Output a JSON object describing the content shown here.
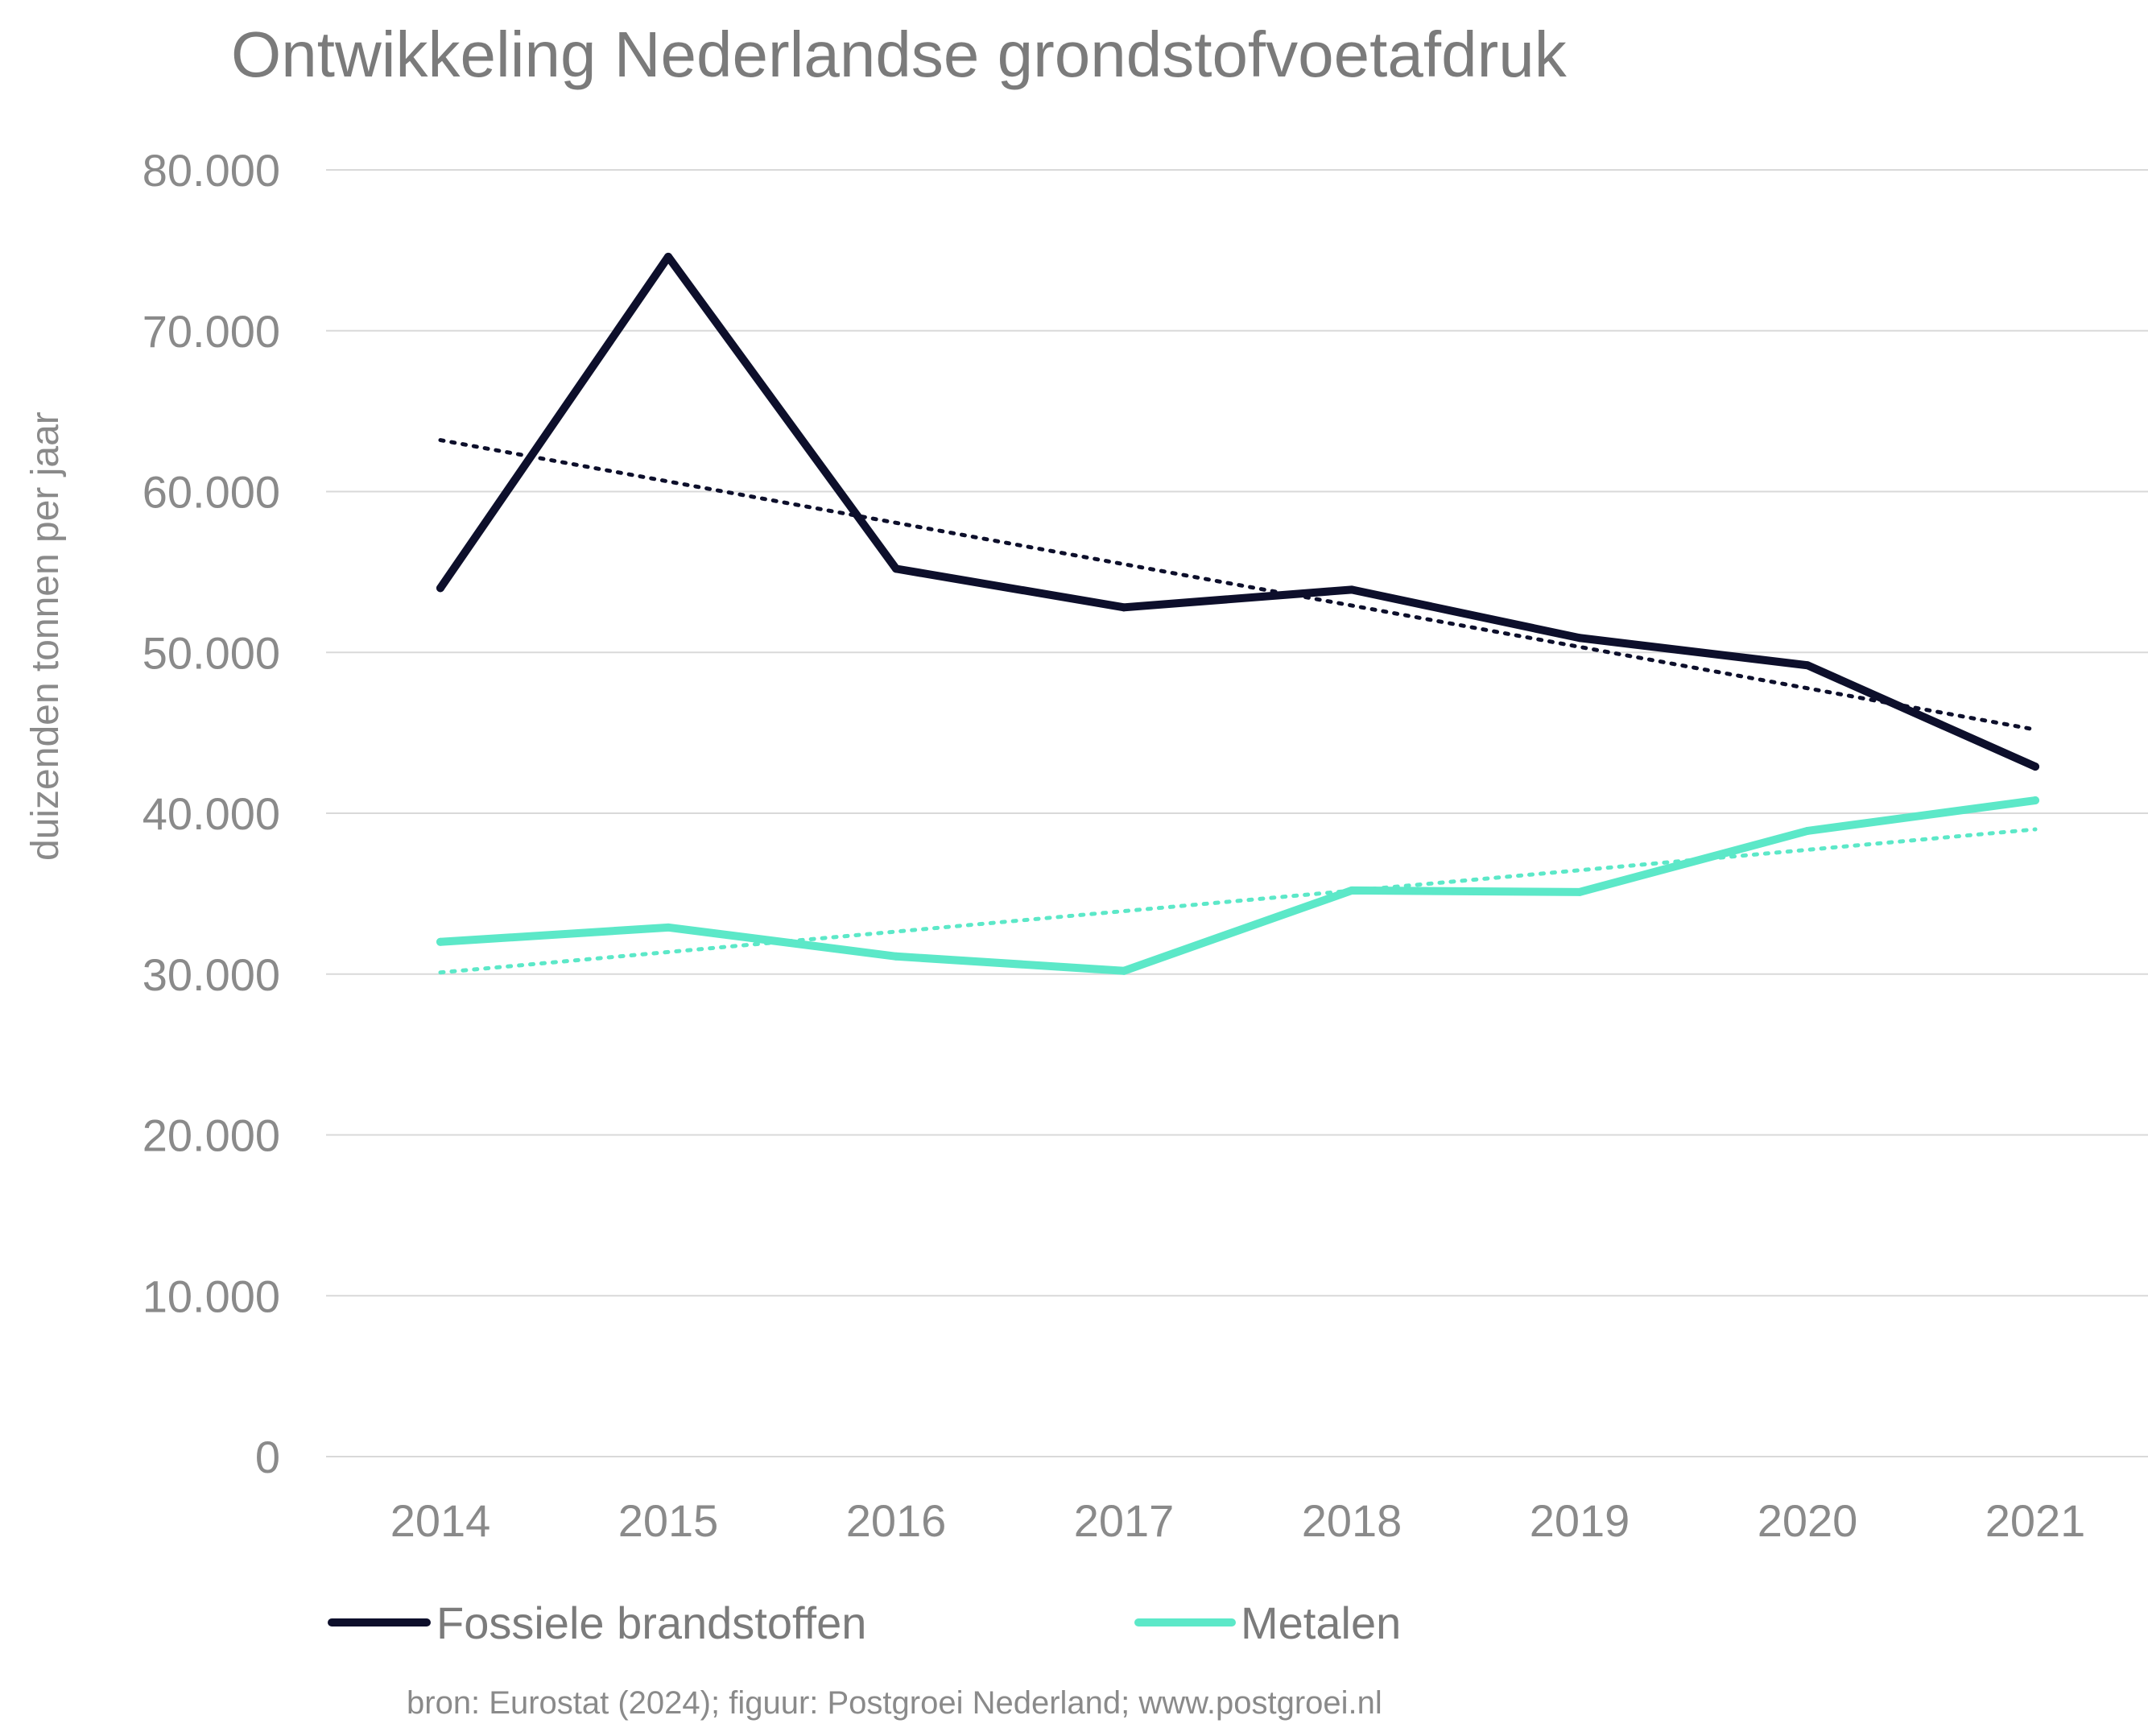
{
  "chart_data": {
    "type": "line",
    "title": "Ontwikkeling Nederlandse grondstofvoetafdruk",
    "xlabel": "",
    "ylabel": "duizenden tonnen per jaar",
    "categories": [
      "2014",
      "2015",
      "2016",
      "2017",
      "2018",
      "2019",
      "2020",
      "2021"
    ],
    "ylim": [
      0,
      80000
    ],
    "yticks": [
      0,
      10000,
      20000,
      30000,
      40000,
      50000,
      60000,
      70000,
      80000
    ],
    "ytick_labels": [
      "0",
      "10.000",
      "20.000",
      "30.000",
      "40.000",
      "50.000",
      "60.000",
      "70.000",
      "80.000"
    ],
    "grid": true,
    "legend_position": "bottom",
    "series": [
      {
        "name": "Fossiele brandstoffen",
        "color": "#0d0f2b",
        "values": [
          54000,
          74600,
          55200,
          52800,
          53900,
          50900,
          49200,
          42900
        ],
        "trendline": {
          "type": "linear",
          "start": 63200,
          "end": 45200
        }
      },
      {
        "name": "Metalen",
        "color": "#5ce8c8",
        "values": [
          32000,
          32900,
          31100,
          30200,
          35200,
          35100,
          38900,
          40800
        ],
        "trendline": {
          "type": "linear",
          "start": 30100,
          "end": 39000
        }
      }
    ],
    "source_note": "bron: Eurostat (2024); figuur: Postgroei Nederland; www.postgroei.nl"
  }
}
